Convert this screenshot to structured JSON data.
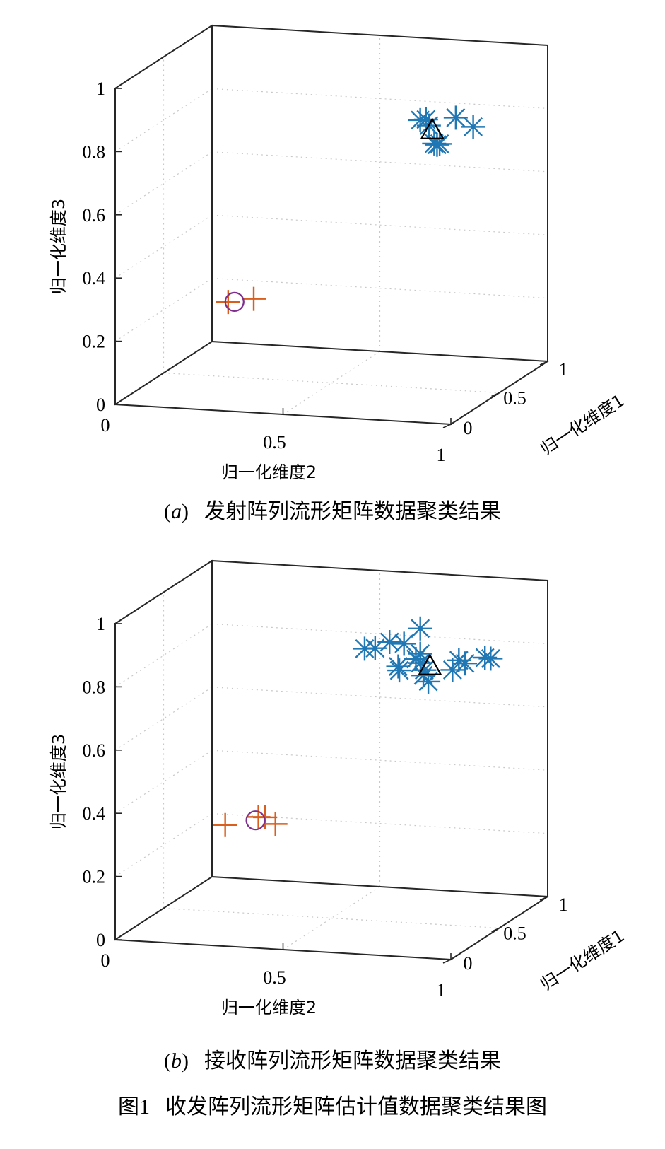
{
  "figure_caption": {
    "label": "图1",
    "text": "收发阵列流形矩阵估计值数据聚类结果图"
  },
  "chart_data": [
    {
      "type": "scatter3d",
      "panel_label": "a",
      "caption": "发射阵列流形矩阵数据聚类结果",
      "xlabel": "归一化维度1",
      "ylabel": "归一化维度2",
      "zlabel": "归一化维度3",
      "xlim": [
        0,
        1
      ],
      "ylim": [
        0,
        1
      ],
      "zlim": [
        0,
        1
      ],
      "xticks": [
        "0",
        "0.5",
        "1"
      ],
      "yticks": [
        "0",
        "0.5",
        "1"
      ],
      "zticks": [
        "0",
        "0.2",
        "0.4",
        "0.6",
        "0.8",
        "1"
      ],
      "grid": true,
      "colors": {
        "star": "#1f77b4",
        "plus": "#d95f1e",
        "circle": "#7e2f8e",
        "triangle": "#000000"
      },
      "series": [
        {
          "marker": "star",
          "points": [
            [
              0.09,
              0.9,
              0.94
            ],
            [
              0.03,
              0.9,
              0.95
            ],
            [
              0.05,
              0.92,
              0.93
            ],
            [
              0.1,
              0.93,
              0.86
            ],
            [
              0.07,
              0.93,
              0.87
            ],
            [
              0.3,
              0.98,
              0.88
            ],
            [
              0.05,
              1.0,
              0.96
            ],
            [
              0.3,
              0.88,
              0.82
            ]
          ]
        },
        {
          "marker": "plus",
          "points": [
            [
              0.3,
              0.25,
              0.28
            ],
            [
              0.46,
              0.28,
              0.26
            ]
          ]
        },
        {
          "marker": "circle",
          "points": [
            [
              0.4,
              0.24,
              0.26
            ]
          ]
        },
        {
          "marker": "triangle",
          "points": [
            [
              0.12,
              0.91,
              0.9
            ]
          ]
        }
      ]
    },
    {
      "type": "scatter3d",
      "panel_label": "b",
      "caption": "接收阵列流形矩阵数据聚类结果",
      "xlabel": "归一化维度1",
      "ylabel": "归一化维度2",
      "zlabel": "归一化维度3",
      "xlim": [
        0,
        1
      ],
      "ylim": [
        0,
        1
      ],
      "zlim": [
        0,
        1
      ],
      "xticks": [
        "0",
        "0.5",
        "1"
      ],
      "yticks": [
        "0",
        "0.5",
        "1"
      ],
      "zticks": [
        "0",
        "0.2",
        "0.4",
        "0.6",
        "0.8",
        "1"
      ],
      "grid": true,
      "colors": {
        "star": "#1f77b4",
        "plus": "#d95f1e",
        "circle": "#7e2f8e",
        "triangle": "#000000"
      },
      "series": [
        {
          "marker": "star",
          "points": [
            [
              0.1,
              0.88,
              1.02
            ],
            [
              0.14,
              0.82,
              0.96
            ],
            [
              0.1,
              0.88,
              0.94
            ],
            [
              0.02,
              0.89,
              0.94
            ],
            [
              0.06,
              0.8,
              0.98
            ],
            [
              0.05,
              0.76,
              0.96
            ],
            [
              0.08,
              0.72,
              0.95
            ],
            [
              0.08,
              0.82,
              0.9
            ],
            [
              0.38,
              0.8,
              0.85
            ],
            [
              0.28,
              0.84,
              0.85
            ],
            [
              0.36,
              0.92,
              0.87
            ],
            [
              0.32,
              0.95,
              0.87
            ],
            [
              0.56,
              0.94,
              0.84
            ],
            [
              0.55,
              0.96,
              0.84
            ],
            [
              0.34,
              0.82,
              0.82
            ],
            [
              0.53,
              0.78,
              0.76
            ],
            [
              0.3,
              0.76,
              0.84
            ],
            [
              0.26,
              0.93,
              0.86
            ]
          ]
        },
        {
          "marker": "plus",
          "points": [
            [
              0.2,
              0.27,
              0.34
            ],
            [
              0.3,
              0.36,
              0.35
            ],
            [
              0.3,
              0.34,
              0.35
            ],
            [
              0.58,
              0.31,
              0.27
            ]
          ]
        },
        {
          "marker": "circle",
          "points": [
            [
              0.34,
              0.32,
              0.33
            ]
          ]
        },
        {
          "marker": "triangle",
          "points": [
            [
              0.2,
              0.88,
              0.88
            ]
          ]
        }
      ]
    }
  ]
}
